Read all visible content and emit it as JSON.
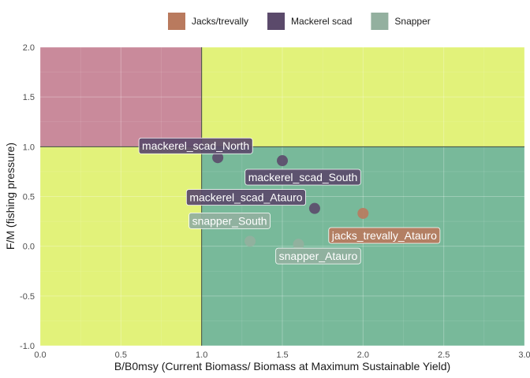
{
  "chart_data": {
    "type": "scatter",
    "xlabel": "B/B0msy (Current Biomass/ Biomass at Maximum Sustainable Yield)",
    "ylabel": "F/M (fishing pressure)",
    "xlim": [
      0,
      3
    ],
    "ylim": [
      -1,
      2
    ],
    "x_ticks": [
      "0.0",
      "0.5",
      "1.0",
      "1.5",
      "2.0",
      "2.5",
      "3.0"
    ],
    "y_ticks": [
      "-1.0",
      "-0.5",
      "0.0",
      "0.5",
      "1.0",
      "1.5",
      "2.0"
    ],
    "grid": true,
    "legend_position": "top",
    "zones": [
      {
        "x": [
          0,
          1
        ],
        "y": [
          1,
          2
        ],
        "color": "#c98a9b"
      },
      {
        "x": [
          1,
          3
        ],
        "y": [
          1,
          2
        ],
        "color": "#e2f27a"
      },
      {
        "x": [
          0,
          1
        ],
        "y": [
          -1,
          1
        ],
        "color": "#e2f27a"
      },
      {
        "x": [
          1,
          3
        ],
        "y": [
          -1,
          1
        ],
        "color": "#78b99a"
      }
    ],
    "reference_lines": {
      "x": 1,
      "y": 1
    },
    "series": [
      {
        "name": "Jacks/trevally",
        "color": "#b97a5e",
        "points": [
          {
            "label": "jacks_trevally_Atauro",
            "x": 2.0,
            "y": 0.33
          }
        ]
      },
      {
        "name": "Mackerel scad",
        "color": "#5b4a6b",
        "points": [
          {
            "label": "mackerel_scad_North",
            "x": 1.1,
            "y": 0.89
          },
          {
            "label": "mackerel_scad_South",
            "x": 1.5,
            "y": 0.86
          },
          {
            "label": "mackerel_scad_Atauro",
            "x": 1.7,
            "y": 0.38
          }
        ]
      },
      {
        "name": "Snapper",
        "color": "#93b09f",
        "points": [
          {
            "label": "snapper_South",
            "x": 1.3,
            "y": 0.05
          },
          {
            "label": "snapper_Atauro",
            "x": 1.6,
            "y": 0.02
          }
        ]
      }
    ]
  }
}
